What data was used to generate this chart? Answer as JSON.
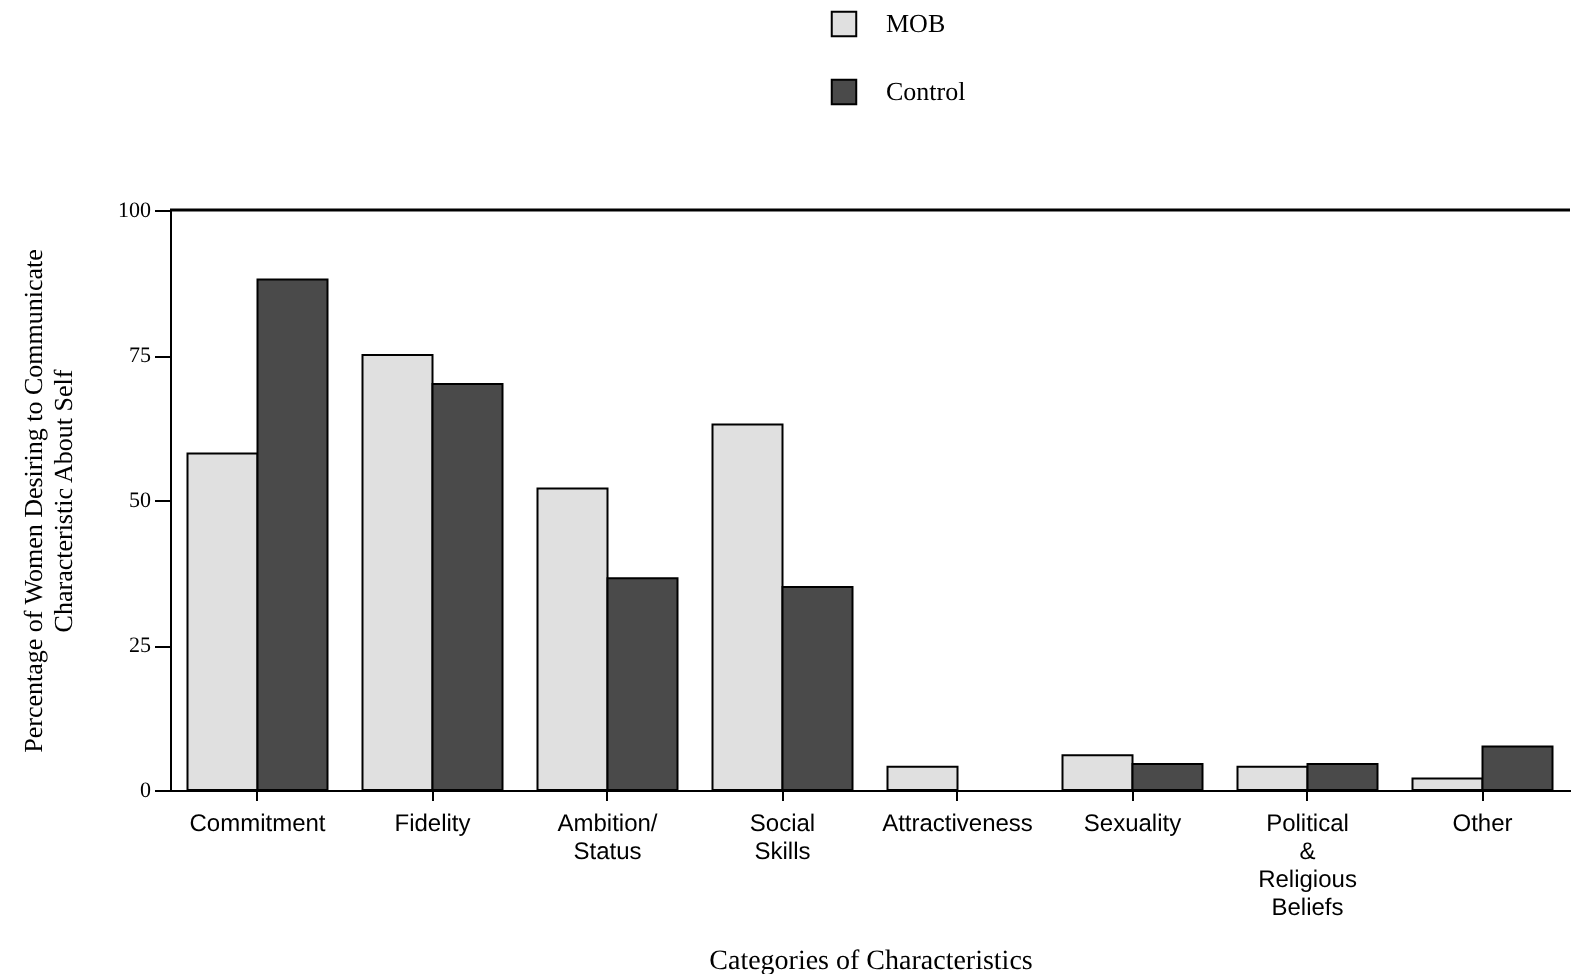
{
  "chart_data": {
    "type": "bar",
    "xlabel": "Categories of Characteristics",
    "ylabel": "Percentage of Women Desiring to Communicate\nCharacteristic About Self",
    "categories": [
      "Commitment",
      "Fidelity",
      "Ambition/\nStatus",
      "Social\nSkills",
      "Attractiveness",
      "Sexuality",
      "Political\n&\nReligious\nBeliefs",
      "Other"
    ],
    "series": [
      {
        "name": "MOB",
        "color": "#e0e0e0",
        "values": [
          58,
          75,
          52,
          63,
          4,
          6,
          4,
          2
        ]
      },
      {
        "name": "Control",
        "color": "#4a4a4a",
        "values": [
          88,
          70,
          36.5,
          35,
          0,
          4.5,
          4.5,
          7.5
        ]
      }
    ],
    "ylim": [
      0,
      100
    ],
    "yticks": [
      0,
      25,
      50,
      75,
      100
    ],
    "grid": false,
    "legend": "top right"
  }
}
